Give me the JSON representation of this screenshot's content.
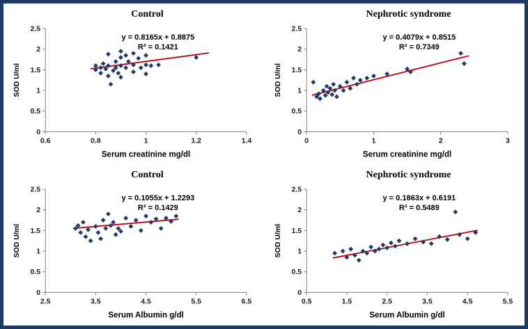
{
  "page": {
    "background": "#FFFFFF",
    "border_color": "#1F3864",
    "marker_color": "#1F3864",
    "trend_color": "#C00000"
  },
  "chart_data": [
    {
      "type": "scatter",
      "title": "Control",
      "xlabel": "Serum creatinine mg/dl",
      "ylabel": "SOD U/ml",
      "equation": "y = 0.8165x + 0.8875",
      "r2": "R² = 0.1421",
      "xlim": [
        0.6,
        1.4
      ],
      "ylim": [
        0,
        2.5
      ],
      "xticks": [
        0.6,
        0.8,
        1,
        1.2,
        1.4
      ],
      "yticks": [
        0,
        0.5,
        1,
        1.5,
        2,
        2.5
      ],
      "grid": false,
      "legend": false,
      "trend": {
        "slope": 0.8165,
        "intercept": 0.8875,
        "x_start": 0.78,
        "x_end": 1.25
      },
      "points": [
        [
          0.8,
          1.6
        ],
        [
          0.8,
          1.5
        ],
        [
          0.82,
          1.55
        ],
        [
          0.82,
          1.42
        ],
        [
          0.83,
          1.65
        ],
        [
          0.84,
          1.52
        ],
        [
          0.85,
          1.88
        ],
        [
          0.85,
          1.6
        ],
        [
          0.85,
          1.35
        ],
        [
          0.86,
          1.15
        ],
        [
          0.87,
          1.48
        ],
        [
          0.88,
          1.7
        ],
        [
          0.88,
          1.55
        ],
        [
          0.89,
          1.42
        ],
        [
          0.9,
          1.95
        ],
        [
          0.9,
          1.8
        ],
        [
          0.9,
          1.6
        ],
        [
          0.9,
          1.32
        ],
        [
          0.92,
          1.85
        ],
        [
          0.92,
          1.55
        ],
        [
          0.93,
          1.7
        ],
        [
          0.95,
          1.9
        ],
        [
          0.95,
          1.62
        ],
        [
          0.95,
          1.45
        ],
        [
          0.97,
          1.78
        ],
        [
          0.98,
          1.55
        ],
        [
          1.0,
          1.85
        ],
        [
          1.0,
          1.62
        ],
        [
          1.0,
          1.4
        ],
        [
          1.02,
          1.6
        ],
        [
          1.05,
          1.62
        ],
        [
          1.2,
          1.8
        ]
      ]
    },
    {
      "type": "scatter",
      "title": "Nephrotic syndrome",
      "xlabel": "Serum creatinine mg/dl",
      "ylabel": "SOD U/ml",
      "equation": "y = 0.4079x + 0.8515",
      "r2": "R² = 0.7349",
      "xlim": [
        0,
        3
      ],
      "ylim": [
        0,
        2.5
      ],
      "xticks": [
        0,
        1,
        2,
        3
      ],
      "yticks": [
        0,
        0.5,
        1,
        1.5,
        2,
        2.5
      ],
      "grid": false,
      "legend": false,
      "trend": {
        "slope": 0.4079,
        "intercept": 0.8515,
        "x_start": 0.08,
        "x_end": 2.42
      },
      "points": [
        [
          0.1,
          1.2
        ],
        [
          0.15,
          0.85
        ],
        [
          0.18,
          0.92
        ],
        [
          0.2,
          0.8
        ],
        [
          0.25,
          1.0
        ],
        [
          0.28,
          0.88
        ],
        [
          0.3,
          1.1
        ],
        [
          0.32,
          0.95
        ],
        [
          0.35,
          1.05
        ],
        [
          0.38,
          0.9
        ],
        [
          0.4,
          1.15
        ],
        [
          0.42,
          1.0
        ],
        [
          0.45,
          0.85
        ],
        [
          0.5,
          1.1
        ],
        [
          0.55,
          1.0
        ],
        [
          0.6,
          1.2
        ],
        [
          0.65,
          1.05
        ],
        [
          0.7,
          1.3
        ],
        [
          0.75,
          1.15
        ],
        [
          0.8,
          1.25
        ],
        [
          0.9,
          1.3
        ],
        [
          1.0,
          1.35
        ],
        [
          1.2,
          1.4
        ],
        [
          1.5,
          1.52
        ],
        [
          1.55,
          1.45
        ],
        [
          2.3,
          1.9
        ],
        [
          2.35,
          1.65
        ]
      ]
    },
    {
      "type": "scatter",
      "title": "Control",
      "xlabel": "Serum Albumin g/dl",
      "ylabel": "SOD U/ml",
      "equation": "y = 0.1055x + 1.2293",
      "r2": "R² = 0.1429",
      "xlim": [
        2.5,
        6.5
      ],
      "ylim": [
        0,
        2.5
      ],
      "xticks": [
        2.5,
        3.5,
        4.5,
        5.5,
        6.5
      ],
      "yticks": [
        0,
        0.5,
        1,
        1.5,
        2,
        2.5
      ],
      "grid": false,
      "legend": false,
      "trend": {
        "slope": 0.1055,
        "intercept": 1.2293,
        "x_start": 3.05,
        "x_end": 5.15
      },
      "points": [
        [
          3.1,
          1.55
        ],
        [
          3.15,
          1.62
        ],
        [
          3.2,
          1.45
        ],
        [
          3.25,
          1.7
        ],
        [
          3.3,
          1.35
        ],
        [
          3.35,
          1.52
        ],
        [
          3.4,
          1.25
        ],
        [
          3.5,
          1.6
        ],
        [
          3.55,
          1.45
        ],
        [
          3.6,
          1.3
        ],
        [
          3.65,
          1.75
        ],
        [
          3.7,
          1.55
        ],
        [
          3.75,
          1.9
        ],
        [
          3.8,
          1.62
        ],
        [
          3.85,
          1.7
        ],
        [
          3.9,
          1.4
        ],
        [
          3.95,
          1.55
        ],
        [
          4.0,
          1.48
        ],
        [
          4.1,
          1.8
        ],
        [
          4.2,
          1.6
        ],
        [
          4.3,
          1.75
        ],
        [
          4.4,
          1.5
        ],
        [
          4.5,
          1.85
        ],
        [
          4.6,
          1.7
        ],
        [
          4.7,
          1.78
        ],
        [
          4.8,
          1.55
        ],
        [
          4.9,
          1.8
        ],
        [
          5.0,
          1.72
        ],
        [
          5.1,
          1.85
        ]
      ]
    },
    {
      "type": "scatter",
      "title": "Nephrotic syndrome",
      "xlabel": "Serum Albumin g/dl",
      "ylabel": "SOD U/ml",
      "equation": "y = 0.1863x + 0.6191",
      "r2": "R² = 0.5489",
      "xlim": [
        0.5,
        5.5
      ],
      "ylim": [
        0,
        2.5
      ],
      "xticks": [
        0.5,
        1.5,
        2.5,
        3.5,
        4.5,
        5.5
      ],
      "yticks": [
        0,
        0.5,
        1,
        1.5,
        2,
        2.5
      ],
      "grid": false,
      "legend": false,
      "trend": {
        "slope": 0.1863,
        "intercept": 0.6191,
        "x_start": 1.15,
        "x_end": 4.75
      },
      "points": [
        [
          1.2,
          0.95
        ],
        [
          1.4,
          1.0
        ],
        [
          1.5,
          0.85
        ],
        [
          1.6,
          1.05
        ],
        [
          1.7,
          0.9
        ],
        [
          1.8,
          0.78
        ],
        [
          1.9,
          1.0
        ],
        [
          2.0,
          0.95
        ],
        [
          2.1,
          1.1
        ],
        [
          2.2,
          1.0
        ],
        [
          2.3,
          1.05
        ],
        [
          2.4,
          1.15
        ],
        [
          2.5,
          1.08
        ],
        [
          2.6,
          1.2
        ],
        [
          2.7,
          1.12
        ],
        [
          2.8,
          1.25
        ],
        [
          3.0,
          1.18
        ],
        [
          3.2,
          1.3
        ],
        [
          3.4,
          1.22
        ],
        [
          3.6,
          1.18
        ],
        [
          3.8,
          1.35
        ],
        [
          4.0,
          1.28
        ],
        [
          4.2,
          1.95
        ],
        [
          4.3,
          1.4
        ],
        [
          4.5,
          1.3
        ],
        [
          4.7,
          1.45
        ]
      ]
    }
  ]
}
